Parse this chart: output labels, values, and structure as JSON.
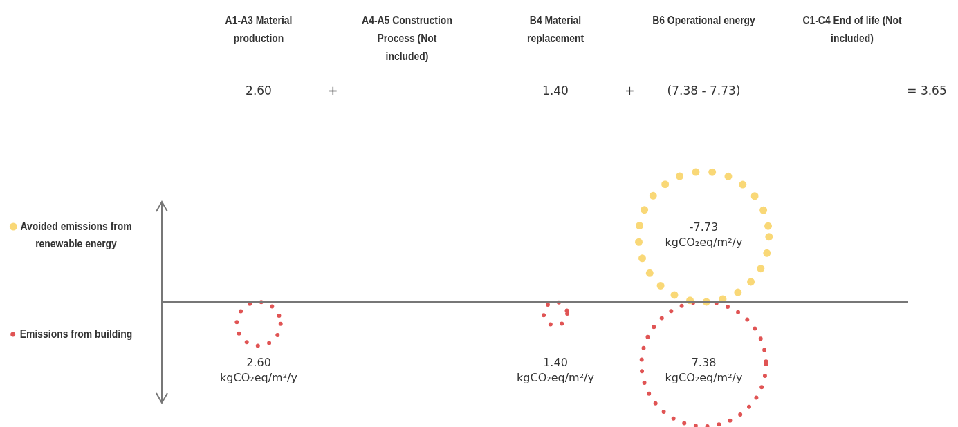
{
  "chart_data": {
    "type": "other",
    "categories": [
      "A1-A3 Material production",
      "A4-A5 Construction Process (Not included)",
      "B4 Material replacement",
      "B6 Operational energy",
      "C1-C4 End of life (Not included)"
    ],
    "series": [
      {
        "name": "Avoided emissions from renewable energy",
        "color": "#f9d877",
        "values": [
          null,
          null,
          null,
          -7.73,
          null
        ],
        "value_labels": [
          null,
          null,
          null,
          "-7.73 kgCO₂eq/m²/y",
          null
        ]
      },
      {
        "name": "Emissions from building",
        "color": "#e05454",
        "values": [
          2.6,
          null,
          1.4,
          7.38,
          null
        ],
        "value_labels": [
          "2.60 kgCO₂eq/m²/y",
          null,
          "1.40 kgCO₂eq/m²/y",
          "7.38 kgCO₂eq/m²/y",
          null
        ]
      }
    ],
    "annotations": [
      "2.60",
      "+",
      "1.40",
      "+",
      "(7.38 - 7.73)",
      "= 3.65"
    ]
  }
}
